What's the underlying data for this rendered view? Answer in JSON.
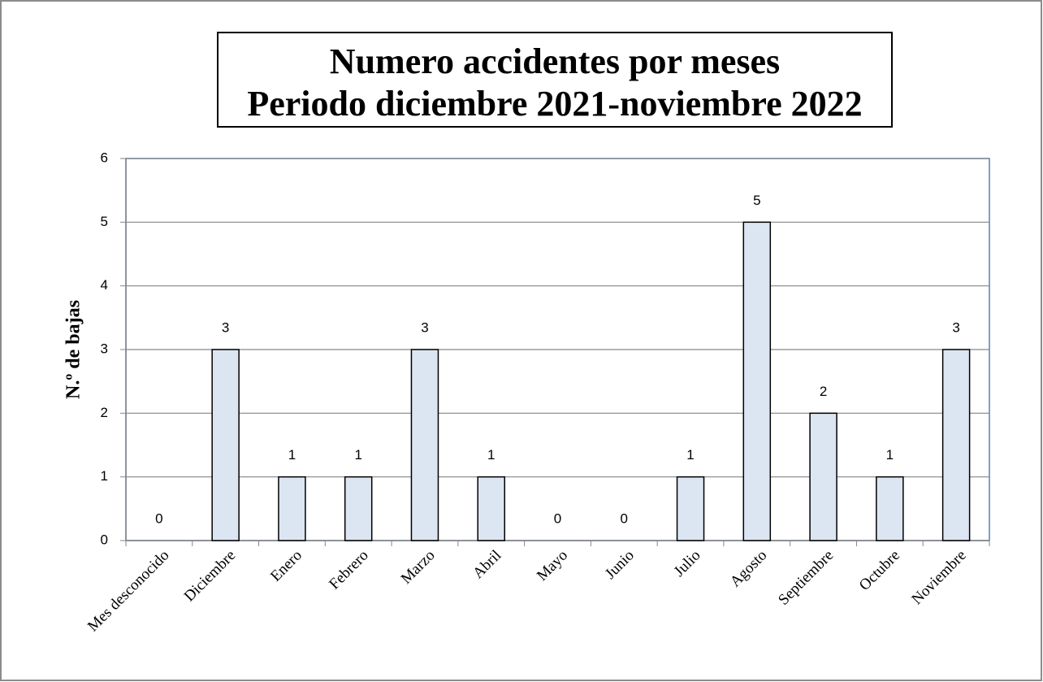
{
  "chart_data": {
    "type": "bar",
    "title": "Numero accidentes por meses",
    "subtitle": "Periodo diciembre 2021-noviembre 2022",
    "y_label": "N.º de bajas",
    "categories": [
      "Mes desconocido",
      "Diciembre",
      "Enero",
      "Febrero",
      "Marzo",
      "Abril",
      "Mayo",
      "Junio",
      "Julio",
      "Agosto",
      "Septiembre",
      "Octubre",
      "Noviembre"
    ],
    "values": [
      0,
      3,
      1,
      1,
      3,
      1,
      0,
      0,
      1,
      5,
      2,
      1,
      3
    ],
    "color": "#dce6f2",
    "ylim": [
      0,
      6
    ],
    "yticks": [
      0,
      1,
      2,
      3,
      4,
      5,
      6
    ],
    "grid": true
  }
}
